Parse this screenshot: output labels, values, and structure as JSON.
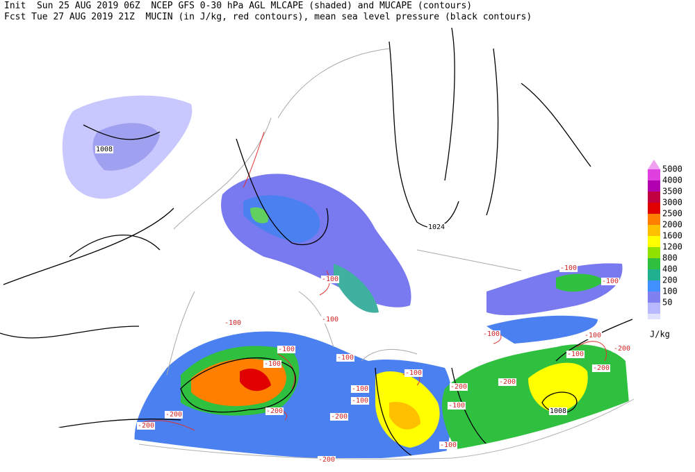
{
  "header": {
    "line1": "Init  Sun 25 AUG 2019 06Z  NCEP GFS 0-30 hPa AGL MLCAPE (shaded) and MUCAPE (contours)",
    "line2": "Fcst Tue 27 AUG 2019 21Z  MUCIN (in J/kg, red contours), mean sea level pressure (black contours)"
  },
  "legend": {
    "levels": [
      {
        "label": 5000,
        "color": "#e040e0"
      },
      {
        "label": 4000,
        "color": "#b000b0"
      },
      {
        "label": 3500,
        "color": "#c00040"
      },
      {
        "label": 3000,
        "color": "#e00000"
      },
      {
        "label": 2500,
        "color": "#ff8000"
      },
      {
        "label": 2000,
        "color": "#ffc000"
      },
      {
        "label": 1600,
        "color": "#ffff00"
      },
      {
        "label": 1200,
        "color": "#90e000"
      },
      {
        "label": 800,
        "color": "#30c040"
      },
      {
        "label": 400,
        "color": "#20b090"
      },
      {
        "label": 200,
        "color": "#4090ff"
      },
      {
        "label": 100,
        "color": "#8080f0"
      },
      {
        "label": 50,
        "color": "#b8b8ff"
      }
    ],
    "bottom_color": "#e0e0ff",
    "top_color": "#f0a0f0",
    "unit": "J/kg"
  },
  "pressure_labels": [
    1008,
    1024,
    1008
  ],
  "cin_labels": [
    -100,
    -100,
    -100,
    -100,
    -100,
    -100,
    -100,
    -100,
    -100,
    -100,
    -100,
    -100,
    -100,
    -100,
    -100,
    -100,
    -200,
    -200,
    -200,
    -200,
    -200,
    -200,
    -200,
    -200,
    -200
  ]
}
